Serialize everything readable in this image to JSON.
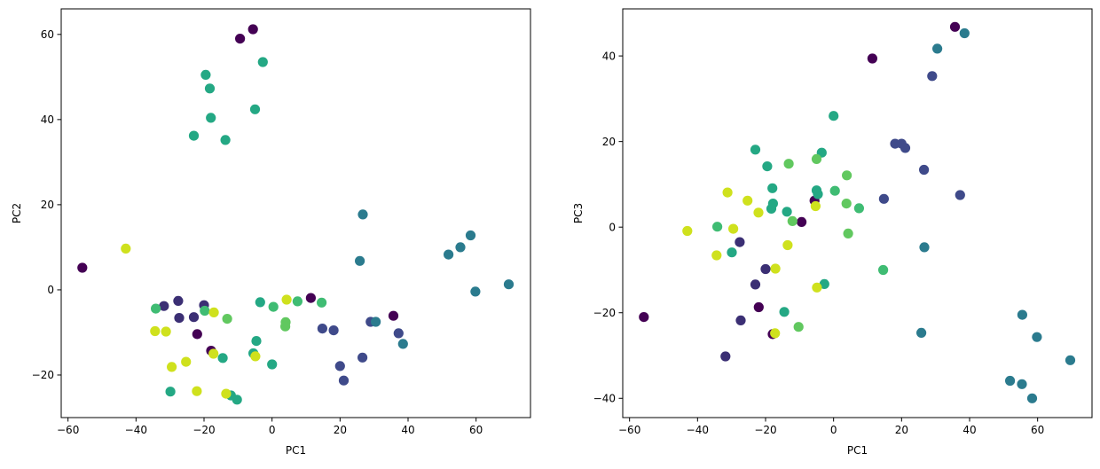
{
  "colors": {
    "c1": "#440154",
    "c2": "#3b2f74",
    "c3": "#3f4a8a",
    "c4": "#2b7b8e",
    "c5": "#24a884",
    "c6": "#3fbc73",
    "c7": "#61c85f",
    "c8": "#cfe11d"
  },
  "chart_data": [
    {
      "type": "scatter",
      "title": "",
      "xlabel": "PC1",
      "ylabel": "PC2",
      "xlim": [
        -62,
        76
      ],
      "ylim": [
        -30,
        66
      ],
      "xticks": [
        -60,
        -40,
        -20,
        0,
        20,
        40,
        60
      ],
      "yticks": [
        -20,
        0,
        20,
        40,
        60
      ],
      "grid": false,
      "points": [
        {
          "x": -9.4,
          "y": 59.0,
          "c": "c1"
        },
        {
          "x": -5.6,
          "y": 61.2,
          "c": "c1"
        },
        {
          "x": -55.8,
          "y": 5.2,
          "c": "c1"
        },
        {
          "x": -17.9,
          "y": -14.3,
          "c": "c1"
        },
        {
          "x": -22.0,
          "y": -10.4,
          "c": "c1"
        },
        {
          "x": 11.4,
          "y": -1.9,
          "c": "c1"
        },
        {
          "x": 35.7,
          "y": -6.1,
          "c": "c1"
        },
        {
          "x": -31.8,
          "y": -3.8,
          "c": "c2"
        },
        {
          "x": -27.6,
          "y": -2.6,
          "c": "c2"
        },
        {
          "x": -27.3,
          "y": -6.6,
          "c": "c2"
        },
        {
          "x": -23.0,
          "y": -6.4,
          "c": "c2"
        },
        {
          "x": -20.0,
          "y": -3.6,
          "c": "c2"
        },
        {
          "x": 14.8,
          "y": -9.1,
          "c": "c3"
        },
        {
          "x": 18.1,
          "y": -9.5,
          "c": "c3"
        },
        {
          "x": 20.0,
          "y": -17.9,
          "c": "c3"
        },
        {
          "x": 21.1,
          "y": -21.3,
          "c": "c3"
        },
        {
          "x": 26.6,
          "y": -15.9,
          "c": "c3"
        },
        {
          "x": 29.0,
          "y": -7.5,
          "c": "c3"
        },
        {
          "x": 37.2,
          "y": -10.2,
          "c": "c3"
        },
        {
          "x": 26.7,
          "y": 17.7,
          "c": "c4"
        },
        {
          "x": 25.8,
          "y": 6.8,
          "c": "c4"
        },
        {
          "x": 51.9,
          "y": 8.3,
          "c": "c4"
        },
        {
          "x": 55.4,
          "y": 10.0,
          "c": "c4"
        },
        {
          "x": 58.4,
          "y": 12.8,
          "c": "c4"
        },
        {
          "x": 59.8,
          "y": -0.4,
          "c": "c4"
        },
        {
          "x": 69.6,
          "y": 1.3,
          "c": "c4"
        },
        {
          "x": 30.5,
          "y": -7.5,
          "c": "c4"
        },
        {
          "x": 38.5,
          "y": -12.7,
          "c": "c4"
        },
        {
          "x": -19.5,
          "y": 50.5,
          "c": "c5"
        },
        {
          "x": -18.3,
          "y": 47.3,
          "c": "c5"
        },
        {
          "x": -18.0,
          "y": 40.4,
          "c": "c5"
        },
        {
          "x": -23.0,
          "y": 36.2,
          "c": "c5"
        },
        {
          "x": -13.7,
          "y": 35.2,
          "c": "c5"
        },
        {
          "x": -2.7,
          "y": 53.5,
          "c": "c5"
        },
        {
          "x": -5.0,
          "y": 42.4,
          "c": "c5"
        },
        {
          "x": -3.5,
          "y": -2.9,
          "c": "c5"
        },
        {
          "x": -4.6,
          "y": -12.0,
          "c": "c5"
        },
        {
          "x": 0.0,
          "y": -17.5,
          "c": "c5"
        },
        {
          "x": -29.9,
          "y": -23.9,
          "c": "c5"
        },
        {
          "x": -14.5,
          "y": -16.0,
          "c": "c5"
        },
        {
          "x": -12.1,
          "y": -24.8,
          "c": "c5"
        },
        {
          "x": -10.3,
          "y": -25.8,
          "c": "c5"
        },
        {
          "x": -5.5,
          "y": -14.9,
          "c": "c5"
        },
        {
          "x": -34.2,
          "y": -4.4,
          "c": "c6"
        },
        {
          "x": -19.8,
          "y": -4.9,
          "c": "c6"
        },
        {
          "x": 0.4,
          "y": -4.0,
          "c": "c6"
        },
        {
          "x": 7.5,
          "y": -2.7,
          "c": "c6"
        },
        {
          "x": 14.6,
          "y": -3.0,
          "c": "c6"
        },
        {
          "x": -13.2,
          "y": -6.8,
          "c": "c7"
        },
        {
          "x": 4.0,
          "y": -7.6,
          "c": "c7"
        },
        {
          "x": 3.9,
          "y": -8.6,
          "c": "c7"
        },
        {
          "x": -43.0,
          "y": 9.7,
          "c": "c8"
        },
        {
          "x": -34.4,
          "y": -9.7,
          "c": "c8"
        },
        {
          "x": -31.2,
          "y": -9.8,
          "c": "c8"
        },
        {
          "x": -29.5,
          "y": -18.1,
          "c": "c8"
        },
        {
          "x": -25.3,
          "y": -16.9,
          "c": "c8"
        },
        {
          "x": -22.1,
          "y": -23.8,
          "c": "c8"
        },
        {
          "x": -17.1,
          "y": -5.3,
          "c": "c8"
        },
        {
          "x": -17.2,
          "y": -15.0,
          "c": "c8"
        },
        {
          "x": -13.5,
          "y": -24.4,
          "c": "c8"
        },
        {
          "x": -4.9,
          "y": -15.6,
          "c": "c8"
        },
        {
          "x": 4.3,
          "y": -2.3,
          "c": "c8"
        }
      ]
    },
    {
      "type": "scatter",
      "title": "",
      "xlabel": "PC1",
      "ylabel": "PC3",
      "xlim": [
        -62,
        76
      ],
      "ylim": [
        -44.5,
        51
      ],
      "xticks": [
        -60,
        -40,
        -20,
        0,
        20,
        40,
        60
      ],
      "yticks": [
        -40,
        -20,
        0,
        20,
        40
      ],
      "grid": false,
      "points": [
        {
          "x": -55.8,
          "y": -21.0,
          "c": "c1"
        },
        {
          "x": -22.0,
          "y": -18.7,
          "c": "c1"
        },
        {
          "x": -17.9,
          "y": -25.0,
          "c": "c1"
        },
        {
          "x": -9.4,
          "y": 1.2,
          "c": "c1"
        },
        {
          "x": -5.6,
          "y": 6.2,
          "c": "c1"
        },
        {
          "x": 11.4,
          "y": 39.4,
          "c": "c1"
        },
        {
          "x": 35.7,
          "y": 46.8,
          "c": "c1"
        },
        {
          "x": -31.8,
          "y": -30.2,
          "c": "c2"
        },
        {
          "x": -27.6,
          "y": -3.5,
          "c": "c2"
        },
        {
          "x": -27.3,
          "y": -21.8,
          "c": "c2"
        },
        {
          "x": -23.0,
          "y": -13.4,
          "c": "c2"
        },
        {
          "x": -20.0,
          "y": -9.8,
          "c": "c2"
        },
        {
          "x": 14.8,
          "y": 6.6,
          "c": "c3"
        },
        {
          "x": 18.1,
          "y": 19.5,
          "c": "c3"
        },
        {
          "x": 20.0,
          "y": 19.5,
          "c": "c3"
        },
        {
          "x": 21.1,
          "y": 18.5,
          "c": "c3"
        },
        {
          "x": 26.6,
          "y": 13.4,
          "c": "c3"
        },
        {
          "x": 29.0,
          "y": 35.3,
          "c": "c3"
        },
        {
          "x": 37.2,
          "y": 7.5,
          "c": "c3"
        },
        {
          "x": 26.7,
          "y": -4.7,
          "c": "c4"
        },
        {
          "x": 25.8,
          "y": -24.7,
          "c": "c4"
        },
        {
          "x": 51.9,
          "y": -35.9,
          "c": "c4"
        },
        {
          "x": 55.4,
          "y": -36.7,
          "c": "c4"
        },
        {
          "x": 58.4,
          "y": -40.0,
          "c": "c4"
        },
        {
          "x": 59.8,
          "y": -25.7,
          "c": "c4"
        },
        {
          "x": 69.6,
          "y": -31.1,
          "c": "c4"
        },
        {
          "x": 55.5,
          "y": -20.5,
          "c": "c4"
        },
        {
          "x": 30.5,
          "y": 41.7,
          "c": "c4"
        },
        {
          "x": 38.5,
          "y": 45.3,
          "c": "c4"
        },
        {
          "x": -19.5,
          "y": 14.2,
          "c": "c5"
        },
        {
          "x": -18.3,
          "y": 4.3,
          "c": "c5"
        },
        {
          "x": -18.0,
          "y": 9.1,
          "c": "c5"
        },
        {
          "x": -23.0,
          "y": 18.1,
          "c": "c5"
        },
        {
          "x": -13.7,
          "y": 3.6,
          "c": "c5"
        },
        {
          "x": -2.7,
          "y": -13.3,
          "c": "c5"
        },
        {
          "x": -5.0,
          "y": 8.6,
          "c": "c5"
        },
        {
          "x": -3.5,
          "y": 17.4,
          "c": "c5"
        },
        {
          "x": -4.6,
          "y": 7.7,
          "c": "c5"
        },
        {
          "x": 0.0,
          "y": 26.0,
          "c": "c5"
        },
        {
          "x": -29.9,
          "y": -5.9,
          "c": "c5"
        },
        {
          "x": -14.5,
          "y": -19.8,
          "c": "c5"
        },
        {
          "x": -17.8,
          "y": 5.5,
          "c": "c5"
        },
        {
          "x": -34.2,
          "y": 0.1,
          "c": "c6"
        },
        {
          "x": 0.4,
          "y": 8.5,
          "c": "c6"
        },
        {
          "x": 7.5,
          "y": 4.4,
          "c": "c6"
        },
        {
          "x": 14.6,
          "y": -10.0,
          "c": "c6"
        },
        {
          "x": -13.2,
          "y": 14.8,
          "c": "c7"
        },
        {
          "x": -12.1,
          "y": 1.4,
          "c": "c7"
        },
        {
          "x": -10.3,
          "y": -23.3,
          "c": "c7"
        },
        {
          "x": 3.9,
          "y": 12.1,
          "c": "c7"
        },
        {
          "x": 3.8,
          "y": 5.5,
          "c": "c7"
        },
        {
          "x": -5.0,
          "y": 15.9,
          "c": "c7"
        },
        {
          "x": 4.3,
          "y": -1.5,
          "c": "c7"
        },
        {
          "x": -43.0,
          "y": -0.9,
          "c": "c8"
        },
        {
          "x": -34.4,
          "y": -6.6,
          "c": "c8"
        },
        {
          "x": -31.2,
          "y": 8.1,
          "c": "c8"
        },
        {
          "x": -29.5,
          "y": -0.4,
          "c": "c8"
        },
        {
          "x": -25.3,
          "y": 6.2,
          "c": "c8"
        },
        {
          "x": -22.1,
          "y": 3.4,
          "c": "c8"
        },
        {
          "x": -17.1,
          "y": -9.7,
          "c": "c8"
        },
        {
          "x": -17.2,
          "y": -24.8,
          "c": "c8"
        },
        {
          "x": -13.5,
          "y": -4.2,
          "c": "c8"
        },
        {
          "x": -4.9,
          "y": -14.1,
          "c": "c8"
        },
        {
          "x": -5.3,
          "y": 4.9,
          "c": "c8"
        }
      ]
    }
  ]
}
